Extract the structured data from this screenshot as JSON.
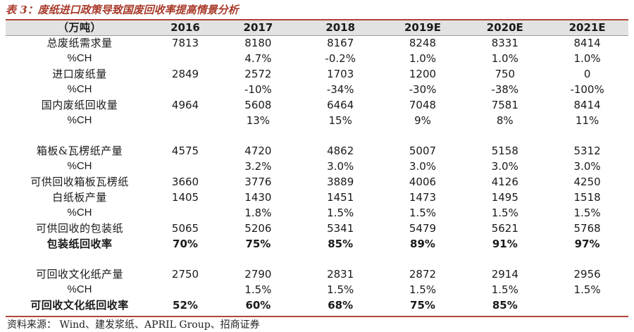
{
  "title": "表 3：废纸进口政策导致国废回收率提高情景分析",
  "table": {
    "header": [
      "（万吨）",
      "2016",
      "2017",
      "2018",
      "2019E",
      "2020E",
      "2021E"
    ],
    "rows": [
      {
        "label": "总废纸需求量",
        "values": [
          "7813",
          "8180",
          "8167",
          "8248",
          "8331",
          "8414"
        ]
      },
      {
        "label": "%CH",
        "values": [
          "",
          "4.7%",
          "-0.2%",
          "1.0%",
          "1.0%",
          "1.0%"
        ]
      },
      {
        "label": "进口废纸量",
        "values": [
          "2849",
          "2572",
          "1703",
          "1200",
          "750",
          "0"
        ]
      },
      {
        "label": "%CH",
        "values": [
          "",
          "-10%",
          "-34%",
          "-30%",
          "-38%",
          "-100%"
        ]
      },
      {
        "label": "国内废纸回收量",
        "values": [
          "4964",
          "5608",
          "6464",
          "7048",
          "7581",
          "8414"
        ]
      },
      {
        "label": "%CH",
        "values": [
          "",
          "13%",
          "15%",
          "9%",
          "8%",
          "11%"
        ]
      },
      {
        "label": "箱板&瓦楞纸产量",
        "values": [
          "4575",
          "4720",
          "4862",
          "5007",
          "5158",
          "5312"
        ]
      },
      {
        "label": "%CH",
        "values": [
          "",
          "3.2%",
          "3.0%",
          "3.0%",
          "3.0%",
          "3.0%"
        ]
      },
      {
        "label": "可供回收箱板瓦楞纸",
        "values": [
          "3660",
          "3776",
          "3889",
          "4006",
          "4126",
          "4250"
        ]
      },
      {
        "label": "白纸板产量",
        "values": [
          "1405",
          "1430",
          "1451",
          "1473",
          "1495",
          "1518"
        ]
      },
      {
        "label": "%CH",
        "values": [
          "",
          "1.8%",
          "1.5%",
          "1.5%",
          "1.5%",
          "1.5%"
        ]
      },
      {
        "label": "可供回收的包装纸",
        "values": [
          "5065",
          "5206",
          "5341",
          "5479",
          "5621",
          "5768"
        ]
      },
      {
        "label": "包装纸回收率",
        "values": [
          "70%",
          "75%",
          "85%",
          "89%",
          "91%",
          "97%"
        ]
      },
      {
        "label": "可回收文化纸产量",
        "values": [
          "2750",
          "2790",
          "2831",
          "2872",
          "2914",
          "2956"
        ]
      },
      {
        "label": "%CH",
        "values": [
          "",
          "1.5%",
          "1.5%",
          "1.5%",
          "1.5%",
          "1.5%"
        ]
      },
      {
        "label": "可回收文化纸回收率",
        "values": [
          "52%",
          "60%",
          "68%",
          "75%",
          "85%",
          ""
        ]
      }
    ]
  },
  "source": "资料来源： Wind、建发浆纸、APRIL Group、招商证券",
  "colors": {
    "accent": "#a83a2a",
    "header_bg": "#e2e2e2"
  }
}
